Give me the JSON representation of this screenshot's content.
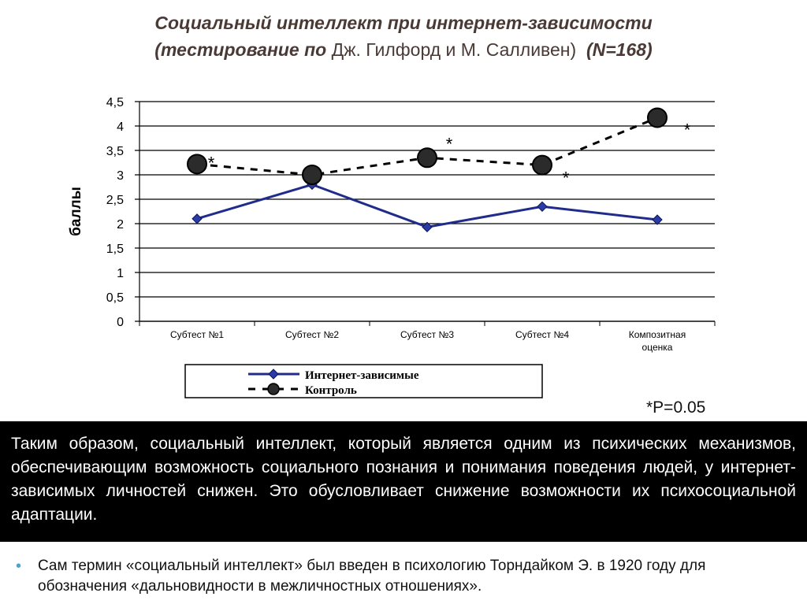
{
  "header": {
    "line1": "Социальный интеллект при интернет-зависимости",
    "line2_part1": "(тестирование по ",
    "line2_part2": "Дж. Гилфорд и М. Салливен)",
    "line2_part3": "(N=168)"
  },
  "chart_data": {
    "type": "line",
    "ylabel": "баллы",
    "xlabel": "",
    "ylim": [
      0,
      4.5
    ],
    "yticks": [
      "0",
      "0,5",
      "1",
      "1,5",
      "2",
      "2,5",
      "3",
      "3,5",
      "4",
      "4,5"
    ],
    "categories": [
      [
        "Субтест №1"
      ],
      [
        "Субтест №2"
      ],
      [
        "Субтест №3"
      ],
      [
        "Субтест №4"
      ],
      [
        "Композитная",
        "оценка"
      ]
    ],
    "series": [
      {
        "name": "Интернет-зависимые",
        "values": [
          2.1,
          2.8,
          1.93,
          2.35,
          2.08
        ],
        "color": "#1f2c8c",
        "style": "solid",
        "marker": "diamond"
      },
      {
        "name": "Контроль",
        "values": [
          3.22,
          3.0,
          3.35,
          3.2,
          4.17
        ],
        "color": "#000000",
        "style": "dashed",
        "marker": "circle"
      }
    ],
    "annotations": [
      "*",
      "*",
      "*",
      "*"
    ],
    "grid": true,
    "legend": "bottom"
  },
  "p_note": "*P=0.05",
  "conclusion": "Таким образом, социальный интеллект, который является одним из психических механизмов, обеспечивающим возможность социального познания и понимания поведения людей, у интернет-зависимых личностей снижен. Это обусловливает снижение возможности их психосоциальной адаптации.",
  "note": {
    "bullet": "•",
    "text": "Сам термин «социальный интеллект» был введен в психологию Торндайком Э. в 1920 году для обозначения «дальновидности в межличностных отношениях»."
  }
}
